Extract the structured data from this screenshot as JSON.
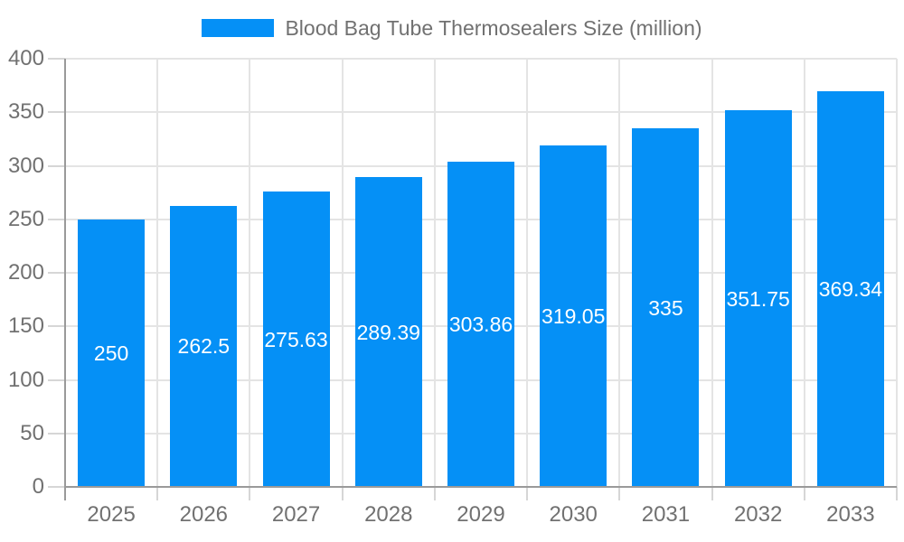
{
  "chart_data": {
    "type": "bar",
    "title": "Blood Bag Tube Thermosealers Size (million)",
    "legend_position": "top",
    "categories": [
      "2025",
      "2026",
      "2027",
      "2028",
      "2029",
      "2030",
      "2031",
      "2032",
      "2033"
    ],
    "values": [
      250,
      262.5,
      275.63,
      289.39,
      303.86,
      319.05,
      335,
      351.75,
      369.34
    ],
    "bar_labels": [
      "250",
      "262.5",
      "275.63",
      "289.39",
      "303.86",
      "319.05",
      "335",
      "351.75",
      "369.34"
    ],
    "xlabel": "",
    "ylabel": "",
    "ylim": [
      0,
      400
    ],
    "yticks": [
      0,
      50,
      100,
      150,
      200,
      250,
      300,
      350,
      400
    ],
    "grid": true,
    "colors": {
      "bar": "#0590F6",
      "grid": "#E4E4E4",
      "tick": "#D6D6D6",
      "axis": "#9A9A9A",
      "text": "#717171",
      "bar_label": "#FFFFFF"
    }
  }
}
